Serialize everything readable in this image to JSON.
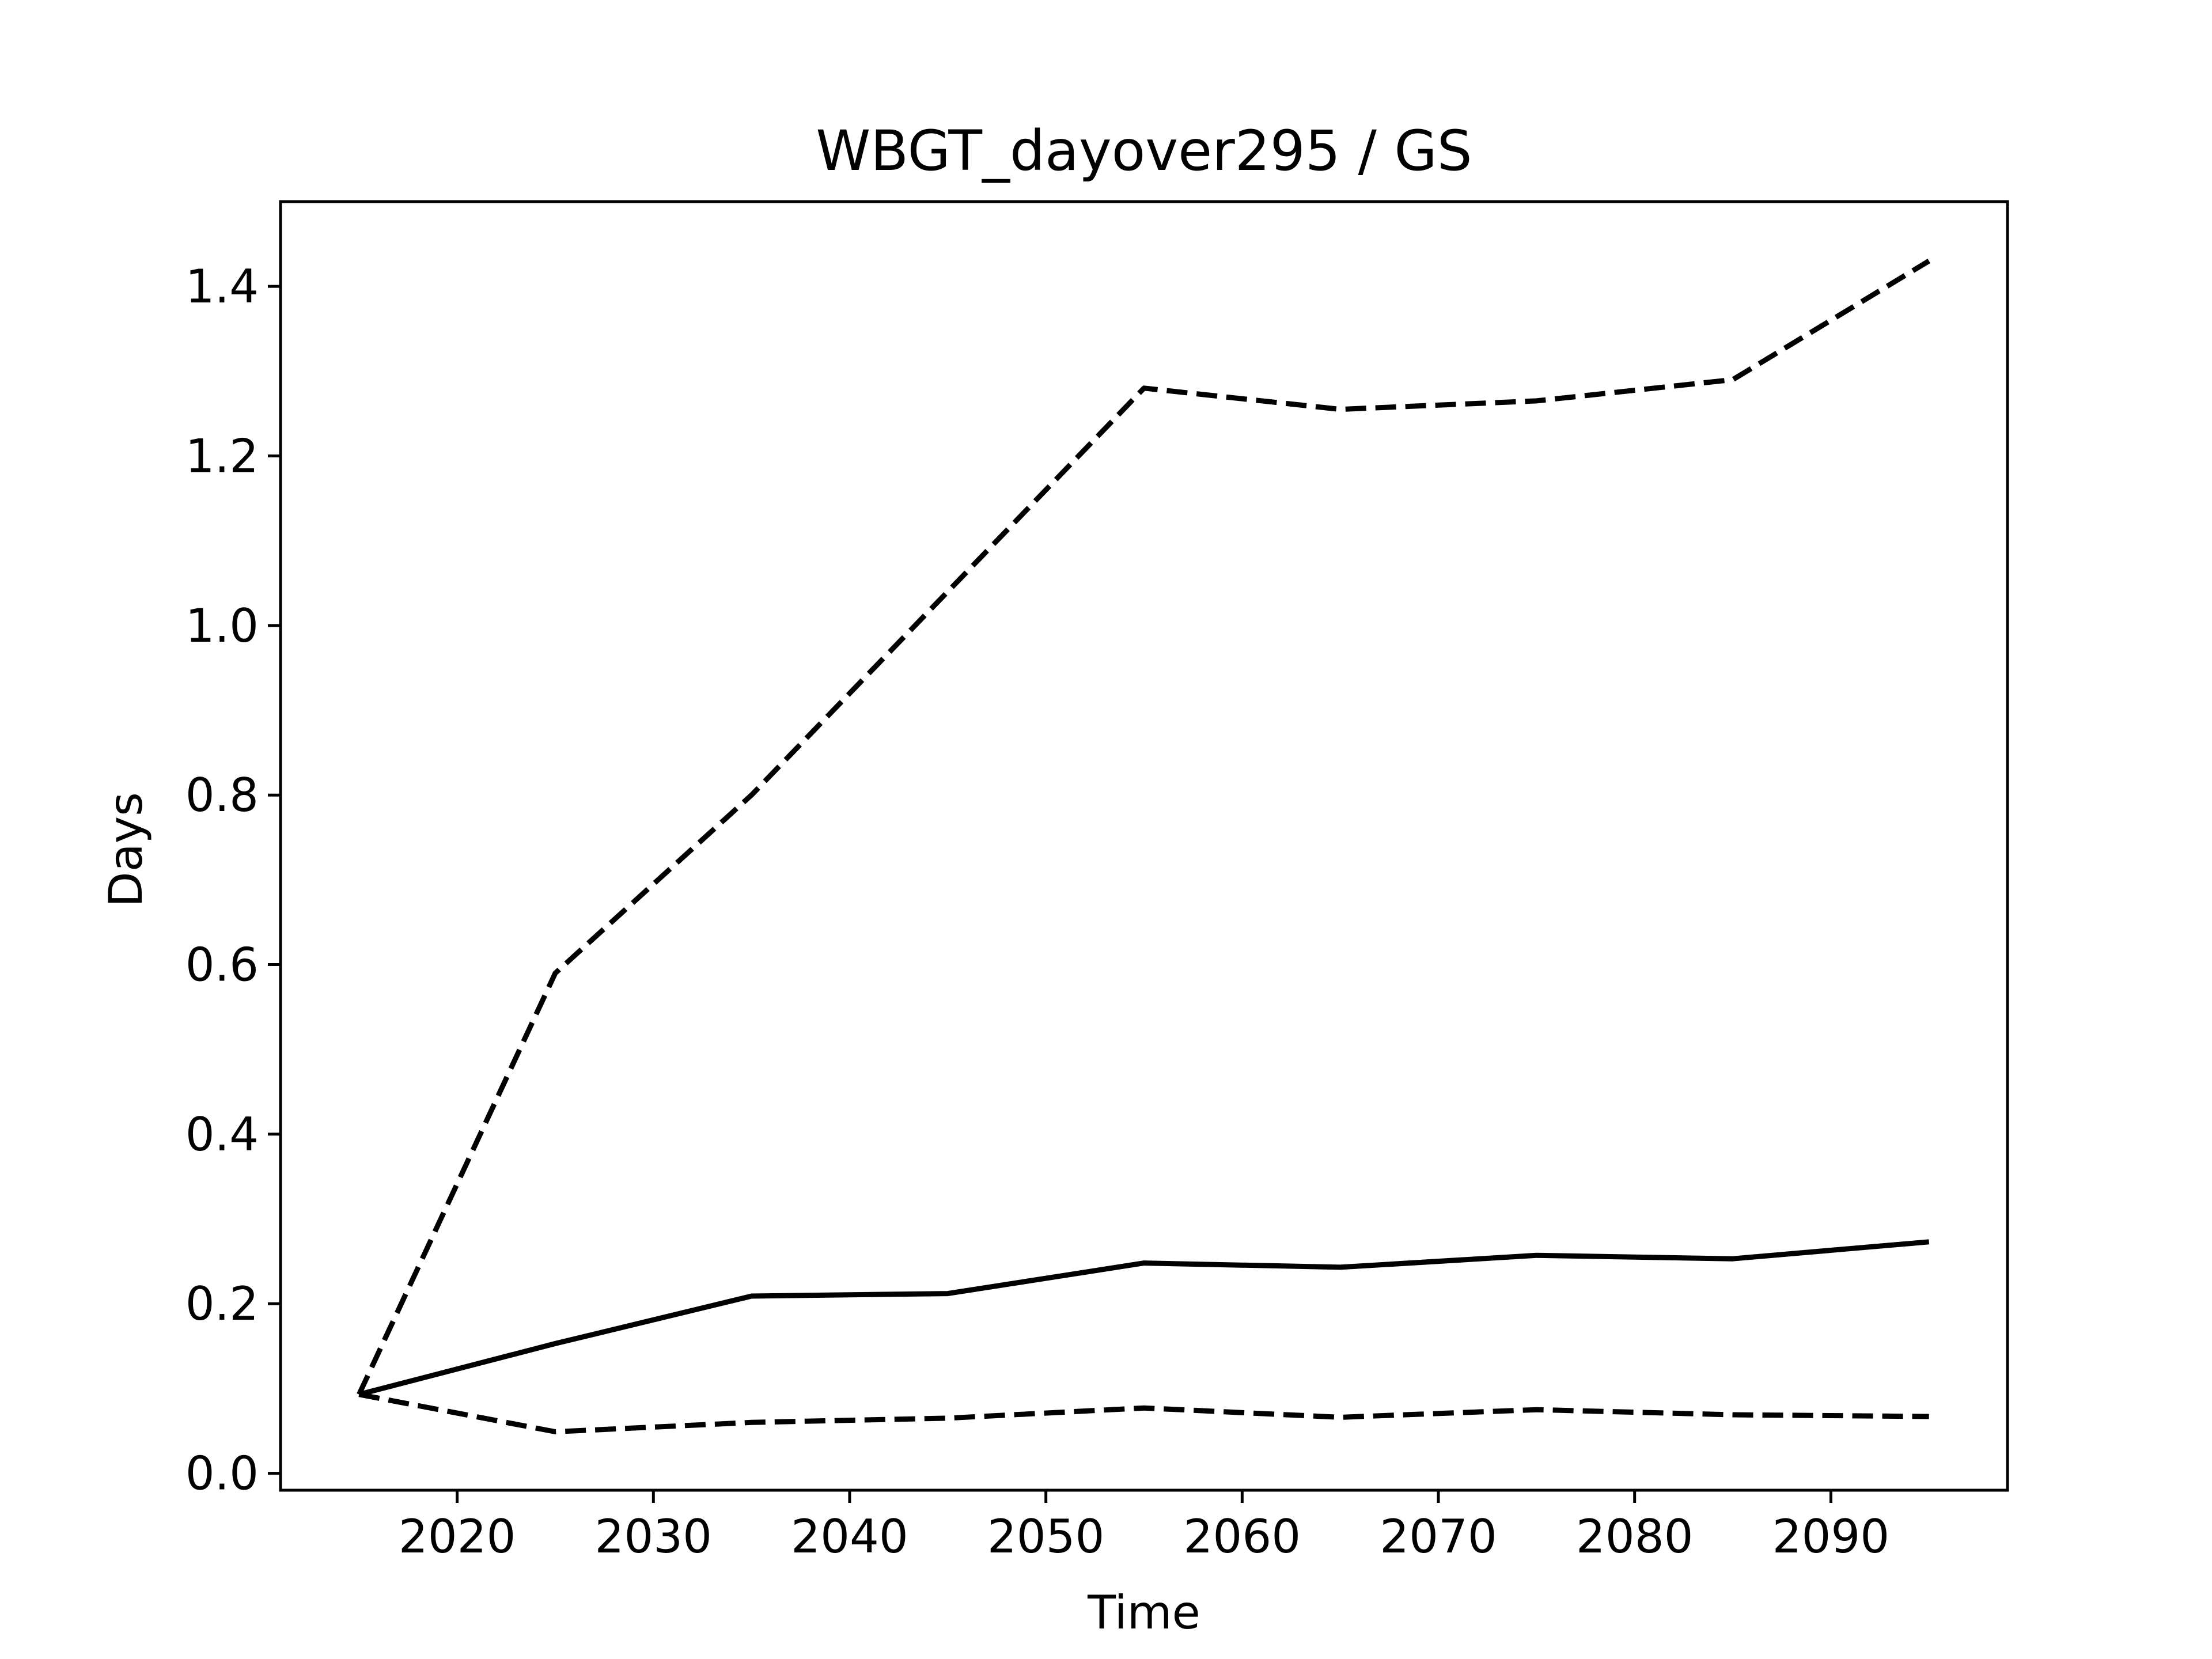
{
  "chart_data": {
    "type": "line",
    "title": "WBGT_dayover295 / GS",
    "xlabel": "Time",
    "ylabel": "Days",
    "xlim": [
      2011,
      2099
    ],
    "ylim": [
      -0.02,
      1.5
    ],
    "x": [
      2015,
      2025,
      2035,
      2045,
      2055,
      2065,
      2075,
      2085,
      2095
    ],
    "xticks": [
      2020,
      2030,
      2040,
      2050,
      2060,
      2070,
      2080,
      2090
    ],
    "yticks": [
      0.0,
      0.2,
      0.4,
      0.6,
      0.8,
      1.0,
      1.2,
      1.4
    ],
    "ytick_labels": [
      "0.0",
      "0.2",
      "0.4",
      "0.6",
      "0.8",
      "1.0",
      "1.2",
      "1.4"
    ],
    "grid": false,
    "series": [
      {
        "style": "dashed",
        "color": "#000000",
        "values": [
          0.093,
          0.59,
          0.8,
          1.04,
          1.28,
          1.255,
          1.265,
          1.29,
          1.43
        ]
      },
      {
        "style": "solid",
        "color": "#000000",
        "values": [
          0.093,
          0.153,
          0.209,
          0.212,
          0.248,
          0.243,
          0.257,
          0.253,
          0.273
        ]
      },
      {
        "style": "dashed",
        "color": "#000000",
        "values": [
          0.093,
          0.049,
          0.06,
          0.065,
          0.077,
          0.066,
          0.075,
          0.069,
          0.067
        ]
      }
    ]
  }
}
